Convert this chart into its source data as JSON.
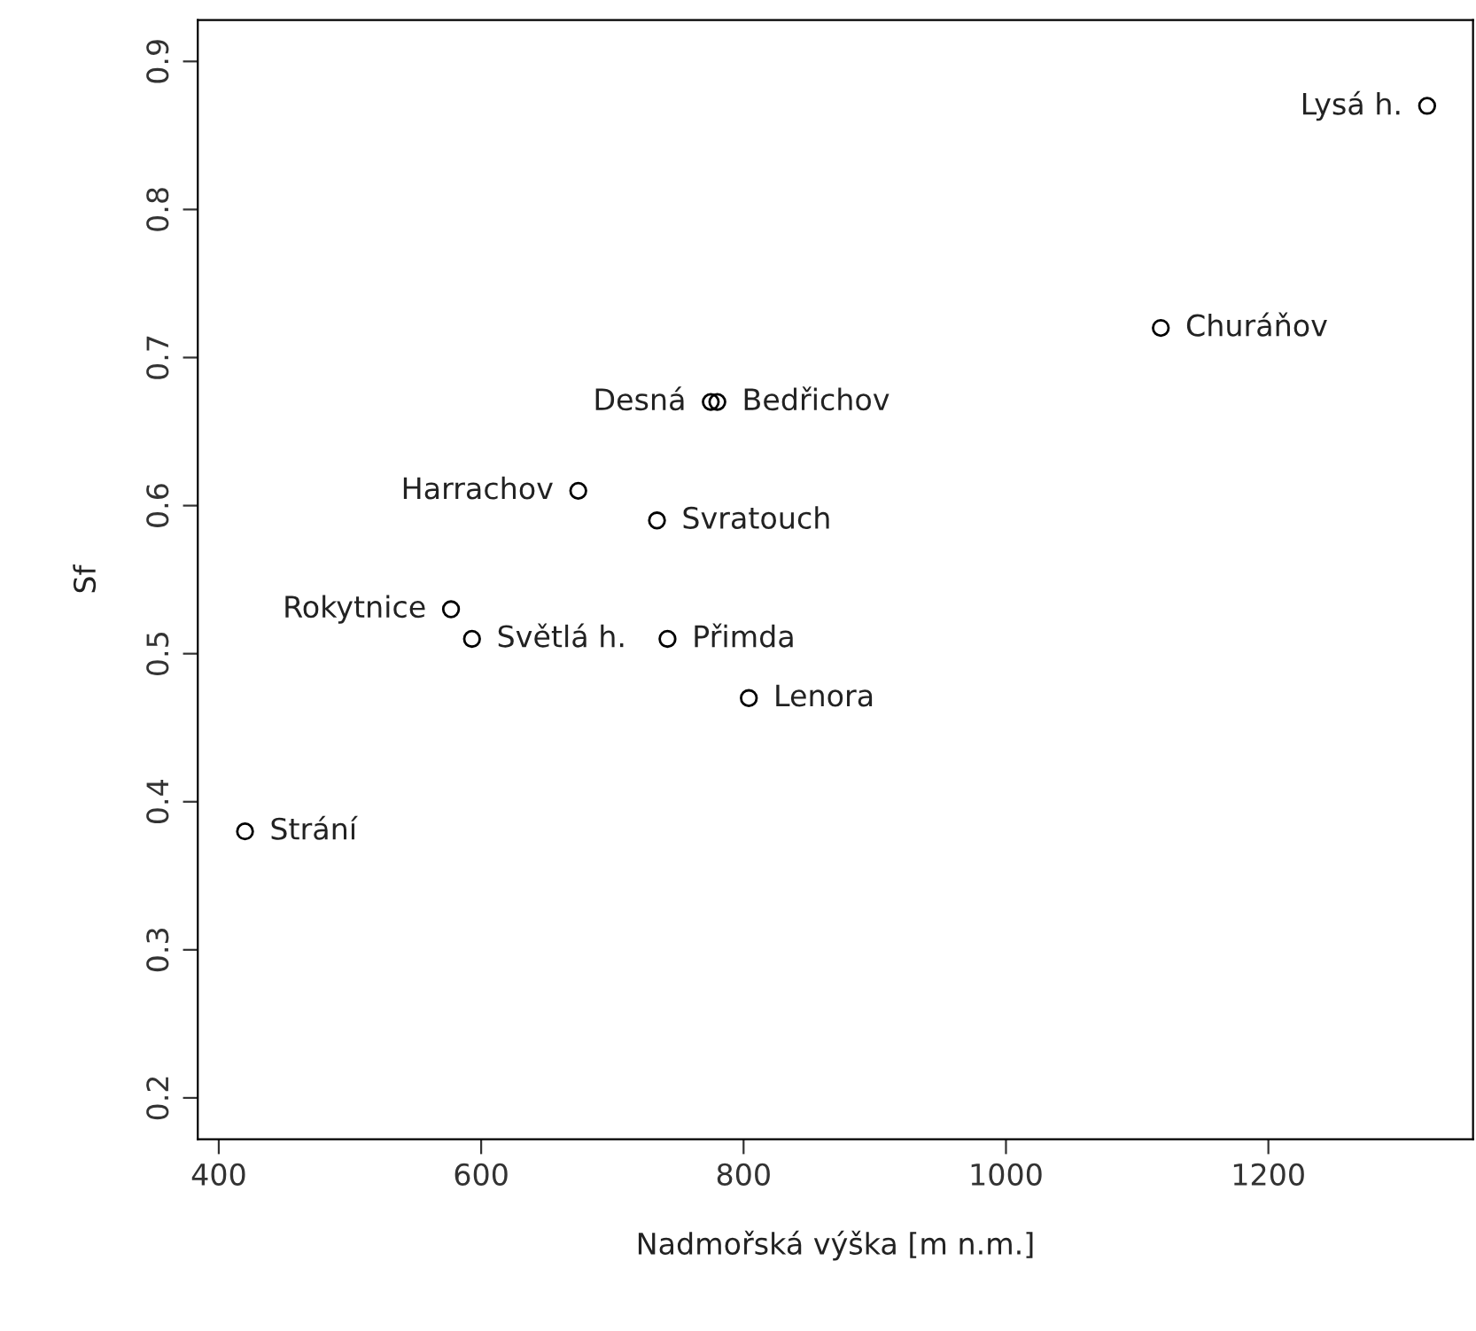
{
  "chart_data": {
    "type": "scatter",
    "xlabel": "Nadmořská výška [m n.m.]",
    "ylabel": "Sf",
    "x": [
      420,
      577,
      593,
      674,
      775,
      780,
      734,
      742,
      804,
      1118,
      1321
    ],
    "series": [
      {
        "color": "#000000",
        "values": [
          0.38,
          0.53,
          0.51,
          0.61,
          0.67,
          0.67,
          0.59,
          0.51,
          0.47,
          0.72,
          0.87
        ]
      }
    ],
    "marker": "circle",
    "xlim": [
      384,
      1356
    ],
    "ylim": [
      0.172,
      0.928
    ],
    "xticks": [
      400,
      600,
      800,
      1000,
      1200
    ],
    "yticks": [
      0.2,
      0.3,
      0.4,
      0.5,
      0.6,
      0.7,
      0.8,
      0.9
    ],
    "grid": false,
    "legend": false,
    "annotations": [
      {
        "text": "Strání",
        "x": 420,
        "y": 0.38
      },
      {
        "text": "Rokytnice",
        "x": 577,
        "y": 0.53
      },
      {
        "text": "Světlá h.",
        "x": 593,
        "y": 0.51
      },
      {
        "text": "Harrachov",
        "x": 674,
        "y": 0.61
      },
      {
        "text": "Desná",
        "x": 775,
        "y": 0.67
      },
      {
        "text": "Bedřichov",
        "x": 780,
        "y": 0.67
      },
      {
        "text": "Svratouch",
        "x": 734,
        "y": 0.59
      },
      {
        "text": "Přimda",
        "x": 742,
        "y": 0.51
      },
      {
        "text": "Lenora",
        "x": 804,
        "y": 0.47
      },
      {
        "text": "Churáňov",
        "x": 1118,
        "y": 0.72
      },
      {
        "text": "Lysá h.",
        "x": 1321,
        "y": 0.87
      }
    ]
  }
}
